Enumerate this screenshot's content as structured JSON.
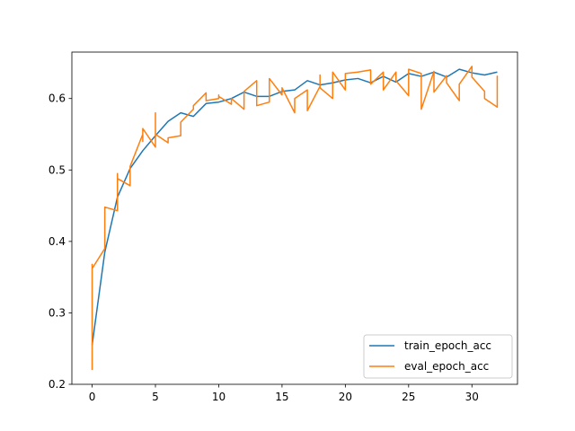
{
  "chart_data": {
    "type": "line",
    "title": "",
    "xlabel": "",
    "ylabel": "",
    "xlim": [
      -1.6,
      33.6
    ],
    "ylim": [
      0.2,
      0.665
    ],
    "grid": false,
    "legend_placement": "lower-right",
    "x_ticks": [
      0,
      5,
      10,
      15,
      20,
      25,
      30
    ],
    "y_ticks": [
      0.2,
      0.3,
      0.4,
      0.5,
      0.6
    ],
    "x_tick_labels": [
      "0",
      "5",
      "10",
      "15",
      "20",
      "25",
      "30"
    ],
    "y_tick_labels": [
      "0.2",
      "0.3",
      "0.4",
      "0.5",
      "0.6"
    ],
    "series": [
      {
        "name": "train_epoch_acc",
        "color": "#1f77b4",
        "x": [
          0,
          1,
          2,
          3,
          4,
          5,
          6,
          7,
          8,
          9,
          10,
          11,
          12,
          13,
          14,
          15,
          16,
          17,
          18,
          19,
          20,
          21,
          22,
          23,
          24,
          25,
          26,
          27,
          28,
          29,
          30,
          31,
          32
        ],
        "y": [
          0.255,
          0.385,
          0.462,
          0.502,
          0.527,
          0.548,
          0.568,
          0.58,
          0.575,
          0.593,
          0.595,
          0.6,
          0.609,
          0.603,
          0.603,
          0.61,
          0.612,
          0.625,
          0.619,
          0.622,
          0.626,
          0.628,
          0.622,
          0.631,
          0.623,
          0.635,
          0.631,
          0.637,
          0.63,
          0.641,
          0.636,
          0.633,
          0.637
        ]
      },
      {
        "name": "eval_epoch_acc",
        "color": "#ff7f0e",
        "x": [
          0,
          0,
          0,
          0,
          1,
          1,
          2,
          2,
          2,
          3,
          3,
          3,
          4,
          4,
          4,
          5,
          5,
          5,
          6,
          6,
          7,
          7,
          7,
          8,
          8,
          9,
          9,
          10,
          10,
          10,
          11,
          11,
          12,
          12,
          13,
          13,
          14,
          14,
          15,
          15,
          16,
          16,
          17,
          17,
          18,
          18,
          18,
          19,
          19,
          20,
          20,
          21,
          21,
          22,
          22,
          23,
          23,
          24,
          24,
          25,
          25,
          26,
          26,
          27,
          27,
          28,
          28,
          29,
          29,
          30,
          30,
          31,
          31,
          32,
          32
        ],
        "y": [
          0.22,
          0.368,
          0.36,
          0.362,
          0.39,
          0.448,
          0.443,
          0.495,
          0.488,
          0.478,
          0.505,
          0.505,
          0.55,
          0.54,
          0.558,
          0.532,
          0.58,
          0.55,
          0.538,
          0.545,
          0.548,
          0.565,
          0.567,
          0.585,
          0.59,
          0.608,
          0.597,
          0.6,
          0.605,
          0.603,
          0.592,
          0.6,
          0.585,
          0.61,
          0.625,
          0.59,
          0.595,
          0.628,
          0.605,
          0.615,
          0.58,
          0.6,
          0.612,
          0.583,
          0.617,
          0.633,
          0.615,
          0.6,
          0.637,
          0.612,
          0.635,
          0.637,
          0.637,
          0.64,
          0.62,
          0.637,
          0.612,
          0.637,
          0.625,
          0.604,
          0.641,
          0.635,
          0.585,
          0.638,
          0.609,
          0.632,
          0.622,
          0.597,
          0.62,
          0.645,
          0.63,
          0.61,
          0.6,
          0.588,
          0.632
        ]
      }
    ]
  }
}
